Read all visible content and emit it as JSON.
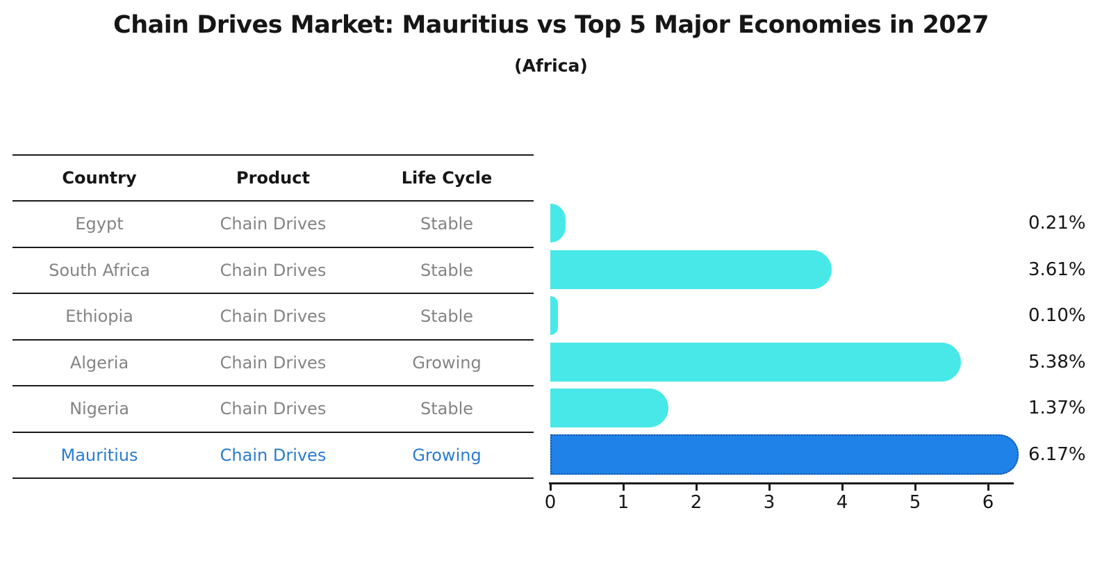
{
  "title": "Chain Drives Market: Mauritius vs Top 5 Major Economies in 2027",
  "subtitle": "(Africa)",
  "table": {
    "headers": {
      "country": "Country",
      "product": "Product",
      "life_cycle": "Life Cycle"
    },
    "rows": [
      {
        "country": "Egypt",
        "product": "Chain Drives",
        "life_cycle": "Stable"
      },
      {
        "country": "South Africa",
        "product": "Chain Drives",
        "life_cycle": "Stable"
      },
      {
        "country": "Ethiopia",
        "product": "Chain Drives",
        "life_cycle": "Stable"
      },
      {
        "country": "Algeria",
        "product": "Chain Drives",
        "life_cycle": "Growing"
      },
      {
        "country": "Nigeria",
        "product": "Chain Drives",
        "life_cycle": "Stable"
      },
      {
        "country": "Mauritius",
        "product": "Chain Drives",
        "life_cycle": "Growing"
      }
    ],
    "highlighted_row": "Mauritius"
  },
  "chart_data": {
    "type": "bar",
    "orientation": "horizontal",
    "categories": [
      "Egypt",
      "South Africa",
      "Ethiopia",
      "Algeria",
      "Nigeria",
      "Mauritius"
    ],
    "values": [
      0.21,
      3.61,
      0.1,
      5.38,
      1.37,
      6.17
    ],
    "value_labels": [
      "0.21%",
      "3.61%",
      "0.10%",
      "5.38%",
      "1.37%",
      "6.17%"
    ],
    "x_ticks": [
      "0",
      "1",
      "2",
      "3",
      "4",
      "5",
      "6"
    ],
    "xlim": [
      0,
      6.35
    ],
    "grid": false,
    "legend": false,
    "base_color": "#48E8E8",
    "highlight_color": "#1E82E8",
    "highlight_border_color": "#1c4f9e",
    "highlight_category": "Mauritius"
  }
}
